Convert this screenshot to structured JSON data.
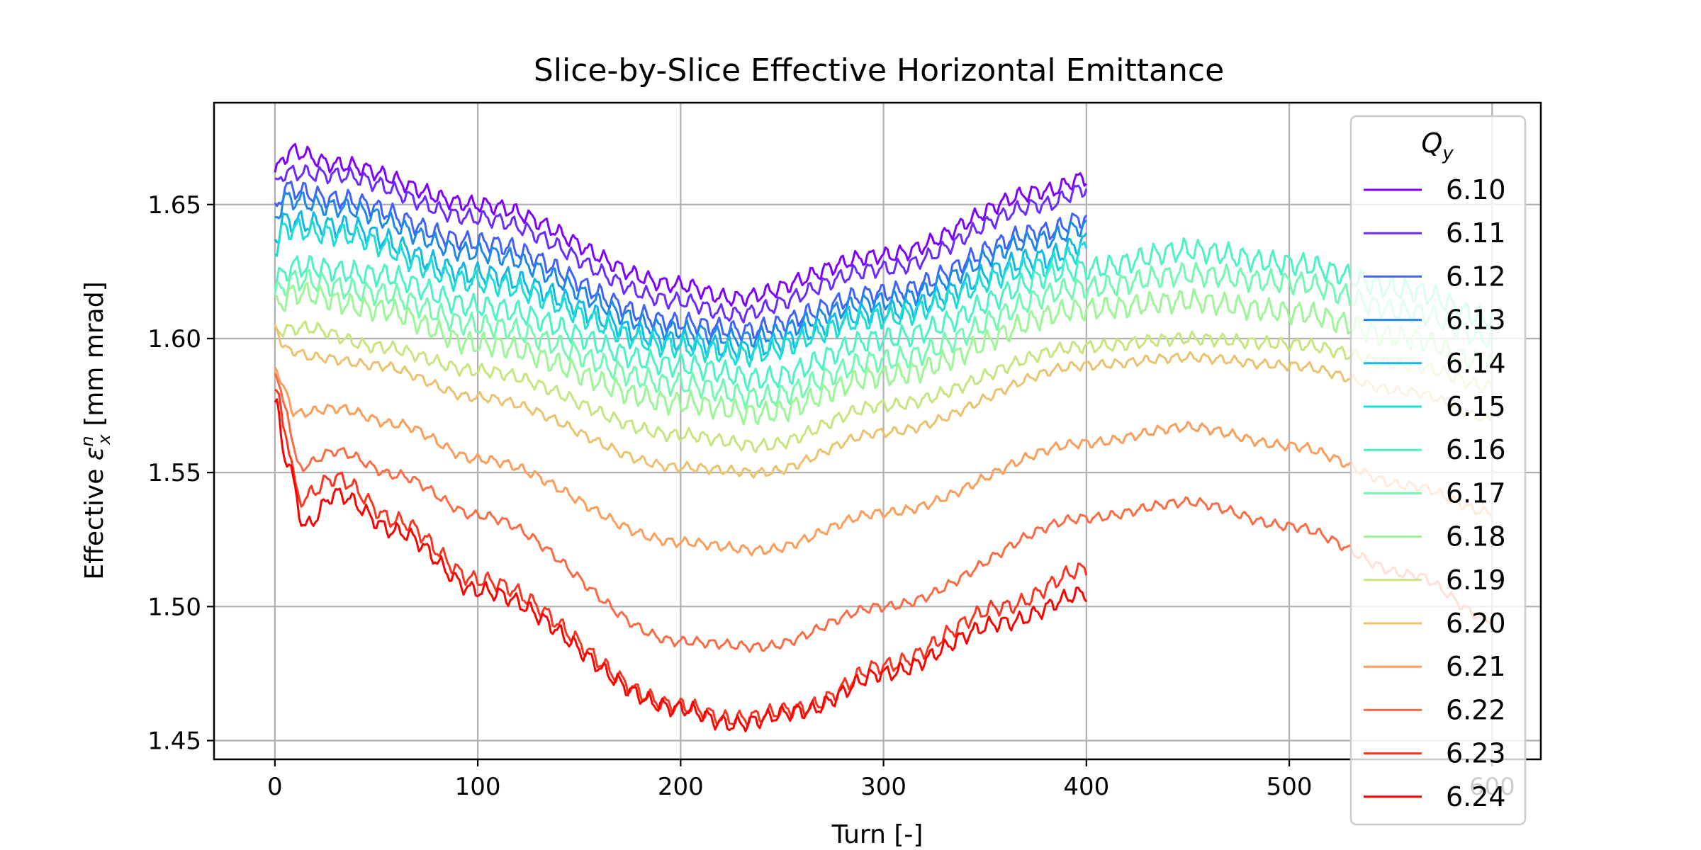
{
  "chart_data": {
    "type": "line",
    "title": "Slice-by-Slice Effective Horizontal Emittance",
    "xlabel": "Turn [-]",
    "ylabel": {
      "prefix": "Effective ",
      "symbol": "ε",
      "sub": "x",
      "sup": "n",
      "suffix": " [mm mrad]"
    },
    "xlim": [
      -30,
      624
    ],
    "ylim": [
      1.443,
      1.688
    ],
    "xticks": [
      0,
      100,
      200,
      300,
      400,
      500,
      600
    ],
    "yticks": [
      1.45,
      1.5,
      1.55,
      1.6,
      1.65
    ],
    "xtick_labels": [
      "0",
      "100",
      "200",
      "300",
      "400",
      "500",
      "600"
    ],
    "ytick_labels": [
      "1.45",
      "1.50",
      "1.55",
      "1.60",
      "1.65"
    ],
    "grid": true,
    "legend": {
      "title_base": "Q",
      "title_sub": "y",
      "placement": "top-right"
    },
    "series": [
      {
        "name": "6.10",
        "color": "#8000ff",
        "x_end": 400,
        "keys": [
          [
            0,
            1.662
          ],
          [
            5,
            1.668
          ],
          [
            8,
            1.67
          ],
          [
            30,
            1.665
          ],
          [
            100,
            1.65
          ],
          [
            200,
            1.62
          ],
          [
            225,
            1.615
          ],
          [
            300,
            1.631
          ],
          [
            380,
            1.655
          ],
          [
            400,
            1.66
          ]
        ],
        "wobble": 0.0025
      },
      {
        "name": "6.11",
        "color": "#6a2cfe",
        "x_end": 400,
        "keys": [
          [
            0,
            1.657
          ],
          [
            5,
            1.662
          ],
          [
            30,
            1.661
          ],
          [
            100,
            1.645
          ],
          [
            200,
            1.614
          ],
          [
            225,
            1.609
          ],
          [
            300,
            1.626
          ],
          [
            380,
            1.65
          ],
          [
            400,
            1.656
          ]
        ],
        "wobble": 0.0025
      },
      {
        "name": "6.12",
        "color": "#4062fa",
        "x_end": 400,
        "keys": [
          [
            0,
            1.648
          ],
          [
            5,
            1.656
          ],
          [
            30,
            1.652
          ],
          [
            100,
            1.636
          ],
          [
            200,
            1.606
          ],
          [
            230,
            1.603
          ],
          [
            300,
            1.617
          ],
          [
            380,
            1.64
          ],
          [
            400,
            1.645
          ]
        ],
        "wobble": 0.003
      },
      {
        "name": "6.13",
        "color": "#1e88e5",
        "x_end": 400,
        "keys": [
          [
            0,
            1.645
          ],
          [
            5,
            1.652
          ],
          [
            30,
            1.649
          ],
          [
            100,
            1.632
          ],
          [
            200,
            1.603
          ],
          [
            230,
            1.6
          ],
          [
            300,
            1.614
          ],
          [
            380,
            1.637
          ],
          [
            400,
            1.642
          ]
        ],
        "wobble": 0.003
      },
      {
        "name": "6.14",
        "color": "#10b8e8",
        "x_end": 400,
        "keys": [
          [
            0,
            1.638
          ],
          [
            5,
            1.644
          ],
          [
            30,
            1.642
          ],
          [
            100,
            1.624
          ],
          [
            200,
            1.599
          ],
          [
            230,
            1.596
          ],
          [
            300,
            1.61
          ],
          [
            380,
            1.63
          ],
          [
            400,
            1.636
          ]
        ],
        "wobble": 0.0035
      },
      {
        "name": "6.15",
        "color": "#1cdcd6",
        "x_end": 400,
        "keys": [
          [
            0,
            1.634
          ],
          [
            5,
            1.641
          ],
          [
            30,
            1.639
          ],
          [
            100,
            1.621
          ],
          [
            200,
            1.597
          ],
          [
            230,
            1.594
          ],
          [
            300,
            1.608
          ],
          [
            380,
            1.627
          ],
          [
            400,
            1.633
          ]
        ],
        "wobble": 0.0035
      },
      {
        "name": "6.16",
        "color": "#4cf2c4",
        "x_end": 600,
        "keys": [
          [
            0,
            1.622
          ],
          [
            10,
            1.627
          ],
          [
            50,
            1.624
          ],
          [
            100,
            1.612
          ],
          [
            200,
            1.59
          ],
          [
            240,
            1.585
          ],
          [
            300,
            1.6
          ],
          [
            400,
            1.626
          ],
          [
            450,
            1.633
          ],
          [
            500,
            1.628
          ],
          [
            560,
            1.618
          ],
          [
            600,
            1.607
          ]
        ],
        "wobble": 0.0035
      },
      {
        "name": "6.17",
        "color": "#72f8b0",
        "x_end": 600,
        "keys": [
          [
            0,
            1.617
          ],
          [
            10,
            1.622
          ],
          [
            50,
            1.617
          ],
          [
            100,
            1.605
          ],
          [
            200,
            1.583
          ],
          [
            240,
            1.578
          ],
          [
            300,
            1.592
          ],
          [
            400,
            1.619
          ],
          [
            450,
            1.624
          ],
          [
            500,
            1.621
          ],
          [
            560,
            1.61
          ],
          [
            600,
            1.6
          ]
        ],
        "wobble": 0.0035
      },
      {
        "name": "6.18",
        "color": "#9cf596",
        "x_end": 600,
        "keys": [
          [
            0,
            1.612
          ],
          [
            10,
            1.617
          ],
          [
            50,
            1.611
          ],
          [
            100,
            1.598
          ],
          [
            200,
            1.576
          ],
          [
            240,
            1.572
          ],
          [
            300,
            1.586
          ],
          [
            400,
            1.611
          ],
          [
            450,
            1.614
          ],
          [
            500,
            1.61
          ],
          [
            560,
            1.6
          ],
          [
            600,
            1.59
          ]
        ],
        "wobble": 0.0035
      },
      {
        "name": "6.19",
        "color": "#c6e57e",
        "x_end": 600,
        "keys": [
          [
            0,
            1.603
          ],
          [
            15,
            1.604
          ],
          [
            50,
            1.597
          ],
          [
            100,
            1.588
          ],
          [
            200,
            1.564
          ],
          [
            240,
            1.56
          ],
          [
            300,
            1.575
          ],
          [
            400,
            1.597
          ],
          [
            450,
            1.6
          ],
          [
            500,
            1.598
          ],
          [
            560,
            1.59
          ],
          [
            600,
            1.582
          ]
        ],
        "wobble": 0.002
      },
      {
        "name": "6.20",
        "color": "#eac26e",
        "x_end": 600,
        "keys": [
          [
            0,
            1.605
          ],
          [
            5,
            1.596
          ],
          [
            20,
            1.593
          ],
          [
            50,
            1.59
          ],
          [
            100,
            1.578
          ],
          [
            200,
            1.552
          ],
          [
            240,
            1.55
          ],
          [
            300,
            1.565
          ],
          [
            400,
            1.59
          ],
          [
            450,
            1.593
          ],
          [
            500,
            1.59
          ],
          [
            560,
            1.58
          ],
          [
            600,
            1.57
          ]
        ],
        "wobble": 0.0015
      },
      {
        "name": "6.21",
        "color": "#fe9c59",
        "x_end": 600,
        "keys": [
          [
            0,
            1.59
          ],
          [
            5,
            1.58
          ],
          [
            10,
            1.572
          ],
          [
            30,
            1.574
          ],
          [
            60,
            1.568
          ],
          [
            100,
            1.555
          ],
          [
            200,
            1.524
          ],
          [
            240,
            1.521
          ],
          [
            300,
            1.535
          ],
          [
            400,
            1.561
          ],
          [
            450,
            1.567
          ],
          [
            500,
            1.56
          ],
          [
            560,
            1.545
          ],
          [
            600,
            1.535
          ]
        ],
        "wobble": 0.0015
      },
      {
        "name": "6.22",
        "color": "#fe6a42",
        "x_end": 600,
        "keys": [
          [
            0,
            1.588
          ],
          [
            5,
            1.574
          ],
          [
            12,
            1.552
          ],
          [
            30,
            1.558
          ],
          [
            60,
            1.549
          ],
          [
            100,
            1.534
          ],
          [
            200,
            1.487
          ],
          [
            240,
            1.485
          ],
          [
            300,
            1.5
          ],
          [
            400,
            1.533
          ],
          [
            450,
            1.539
          ],
          [
            500,
            1.53
          ],
          [
            560,
            1.512
          ],
          [
            600,
            1.495
          ]
        ],
        "wobble": 0.0015
      },
      {
        "name": "6.23",
        "color": "#fe3420",
        "x_end": 400,
        "keys": [
          [
            0,
            1.583
          ],
          [
            5,
            1.565
          ],
          [
            12,
            1.54
          ],
          [
            30,
            1.548
          ],
          [
            60,
            1.532
          ],
          [
            100,
            1.51
          ],
          [
            200,
            1.463
          ],
          [
            225,
            1.458
          ],
          [
            260,
            1.462
          ],
          [
            300,
            1.478
          ],
          [
            360,
            1.5
          ],
          [
            400,
            1.514
          ]
        ],
        "wobble": 0.0025
      },
      {
        "name": "6.24",
        "color": "#ff0000",
        "x_end": 400,
        "keys": [
          [
            0,
            1.577
          ],
          [
            5,
            1.556
          ],
          [
            15,
            1.53
          ],
          [
            30,
            1.542
          ],
          [
            60,
            1.528
          ],
          [
            100,
            1.506
          ],
          [
            200,
            1.462
          ],
          [
            225,
            1.456
          ],
          [
            260,
            1.461
          ],
          [
            300,
            1.475
          ],
          [
            360,
            1.494
          ],
          [
            400,
            1.505
          ]
        ],
        "wobble": 0.0025
      }
    ]
  }
}
